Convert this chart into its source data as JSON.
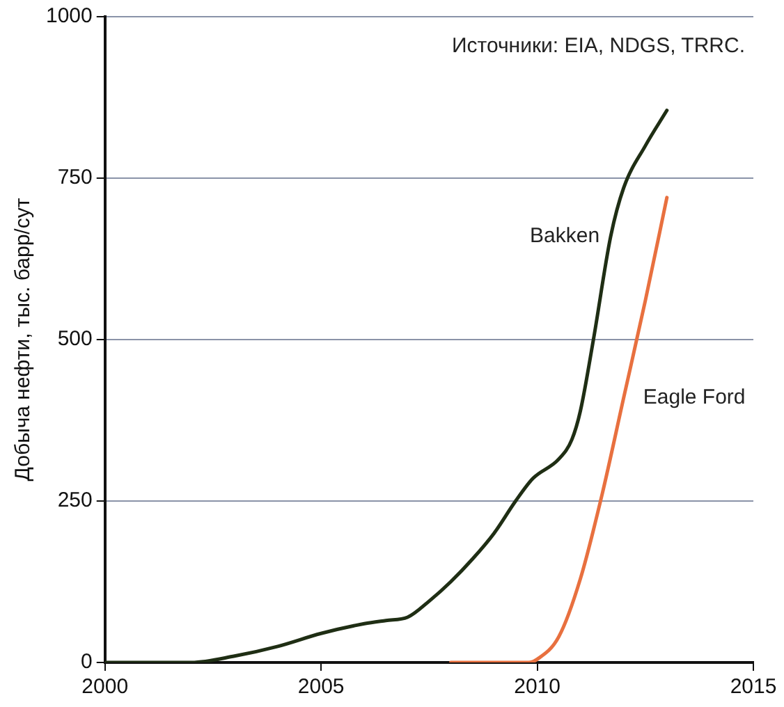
{
  "chart_data": {
    "type": "line",
    "ylabel": "Добыча нефти, тыс. барр/сут",
    "annotations": [
      "Источники: EIA, NDGS, TRRC."
    ],
    "xlim": [
      2000,
      2015
    ],
    "xticks": [
      2000,
      2005,
      2010,
      2015
    ],
    "ylim": [
      0,
      1000
    ],
    "yticks": [
      0,
      250,
      500,
      750,
      1000
    ],
    "grid": "y",
    "legend": false,
    "marker": "none",
    "line_style": "solid",
    "series": [
      {
        "name": "Bakken",
        "color": "#1f2e14",
        "x": [
          2000,
          2002,
          2003,
          2004,
          2005,
          2006,
          2006.5,
          2007,
          2007.5,
          2008,
          2008.5,
          2009,
          2009.5,
          2009.9,
          2010.5,
          2010.8,
          2011,
          2011.3,
          2011.7,
          2012,
          2012.5,
          2013
        ],
        "values": [
          0,
          0,
          10,
          25,
          45,
          60,
          65,
          70,
          95,
          125,
          160,
          200,
          250,
          285,
          315,
          345,
          390,
          500,
          660,
          735,
          800,
          855
        ]
      },
      {
        "name": "Eagle Ford",
        "color": "#e8703f",
        "x": [
          2008,
          2009.8,
          2010,
          2010.5,
          2011,
          2011.5,
          2012,
          2012.5,
          2013
        ],
        "values": [
          0,
          0,
          5,
          40,
          130,
          260,
          410,
          560,
          720
        ]
      }
    ]
  }
}
